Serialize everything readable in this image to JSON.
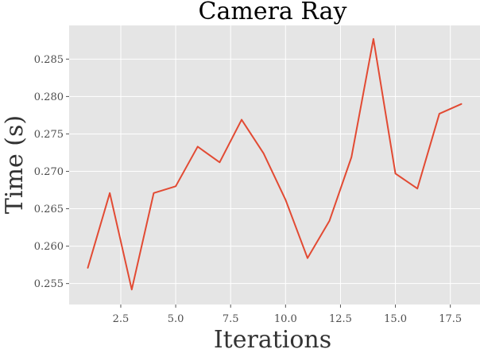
{
  "chart_data": {
    "type": "line",
    "title": "Camera Ray",
    "xlabel": "Iterations",
    "ylabel": "Time (s)",
    "xlim": [
      0.15,
      18.85
    ],
    "ylim": [
      0.2522,
      0.2895
    ],
    "xticks": [
      2.5,
      5.0,
      7.5,
      10.0,
      12.5,
      15.0,
      17.5
    ],
    "xtick_labels": [
      "2.5",
      "5.0",
      "7.5",
      "10.0",
      "12.5",
      "15.0",
      "17.5"
    ],
    "yticks": [
      0.255,
      0.26,
      0.265,
      0.27,
      0.275,
      0.28,
      0.285
    ],
    "ytick_labels": [
      "0.255",
      "0.260",
      "0.265",
      "0.270",
      "0.275",
      "0.280",
      "0.285"
    ],
    "grid": true,
    "background": "#e5e5e5",
    "series": [
      {
        "color": "#e24a33",
        "x": [
          1,
          2,
          3,
          4,
          5,
          6,
          7,
          8,
          9,
          10,
          11,
          12,
          13,
          14,
          15,
          16,
          17,
          18
        ],
        "y": [
          0.2571,
          0.2671,
          0.2542,
          0.2671,
          0.268,
          0.2733,
          0.2712,
          0.2769,
          0.2724,
          0.2662,
          0.2584,
          0.2634,
          0.2719,
          0.2877,
          0.2697,
          0.2677,
          0.2777,
          0.279
        ]
      }
    ]
  }
}
